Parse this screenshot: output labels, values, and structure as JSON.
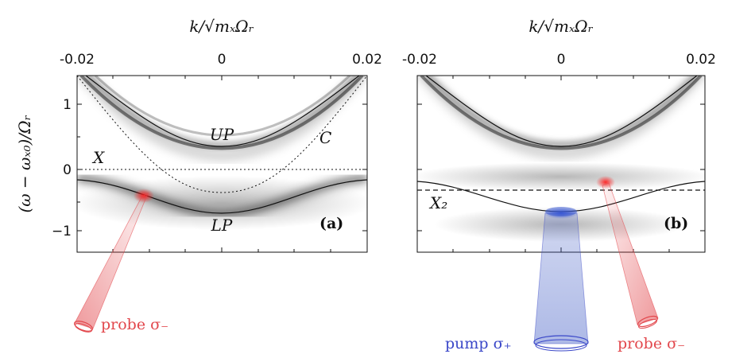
{
  "panels": [
    {
      "panel_label": "(a)",
      "xaxis_label": "k/√mₓΩᵣ",
      "xticks": [
        "-0.02",
        "0",
        "0.02"
      ],
      "ylabel": "(ω − ωₓ₀)/Ωᵣ",
      "yticks": [
        "1",
        "0",
        "−1"
      ],
      "curve_labels": {
        "up": "UP",
        "lp": "LP",
        "c": "C",
        "x": "X"
      },
      "probe_label": "probe σ₋"
    },
    {
      "panel_label": "(b)",
      "xaxis_label": "k/√mₓΩᵣ",
      "xticks": [
        "-0.02",
        "0",
        "0.02"
      ],
      "curve_labels": {
        "x2": "X₂"
      },
      "pump_label": "pump σ₊",
      "probe_label": "probe σ₋"
    }
  ],
  "colors": {
    "probe": "#e2474c",
    "pump": "#3a47c8",
    "curve": "#111111"
  }
}
